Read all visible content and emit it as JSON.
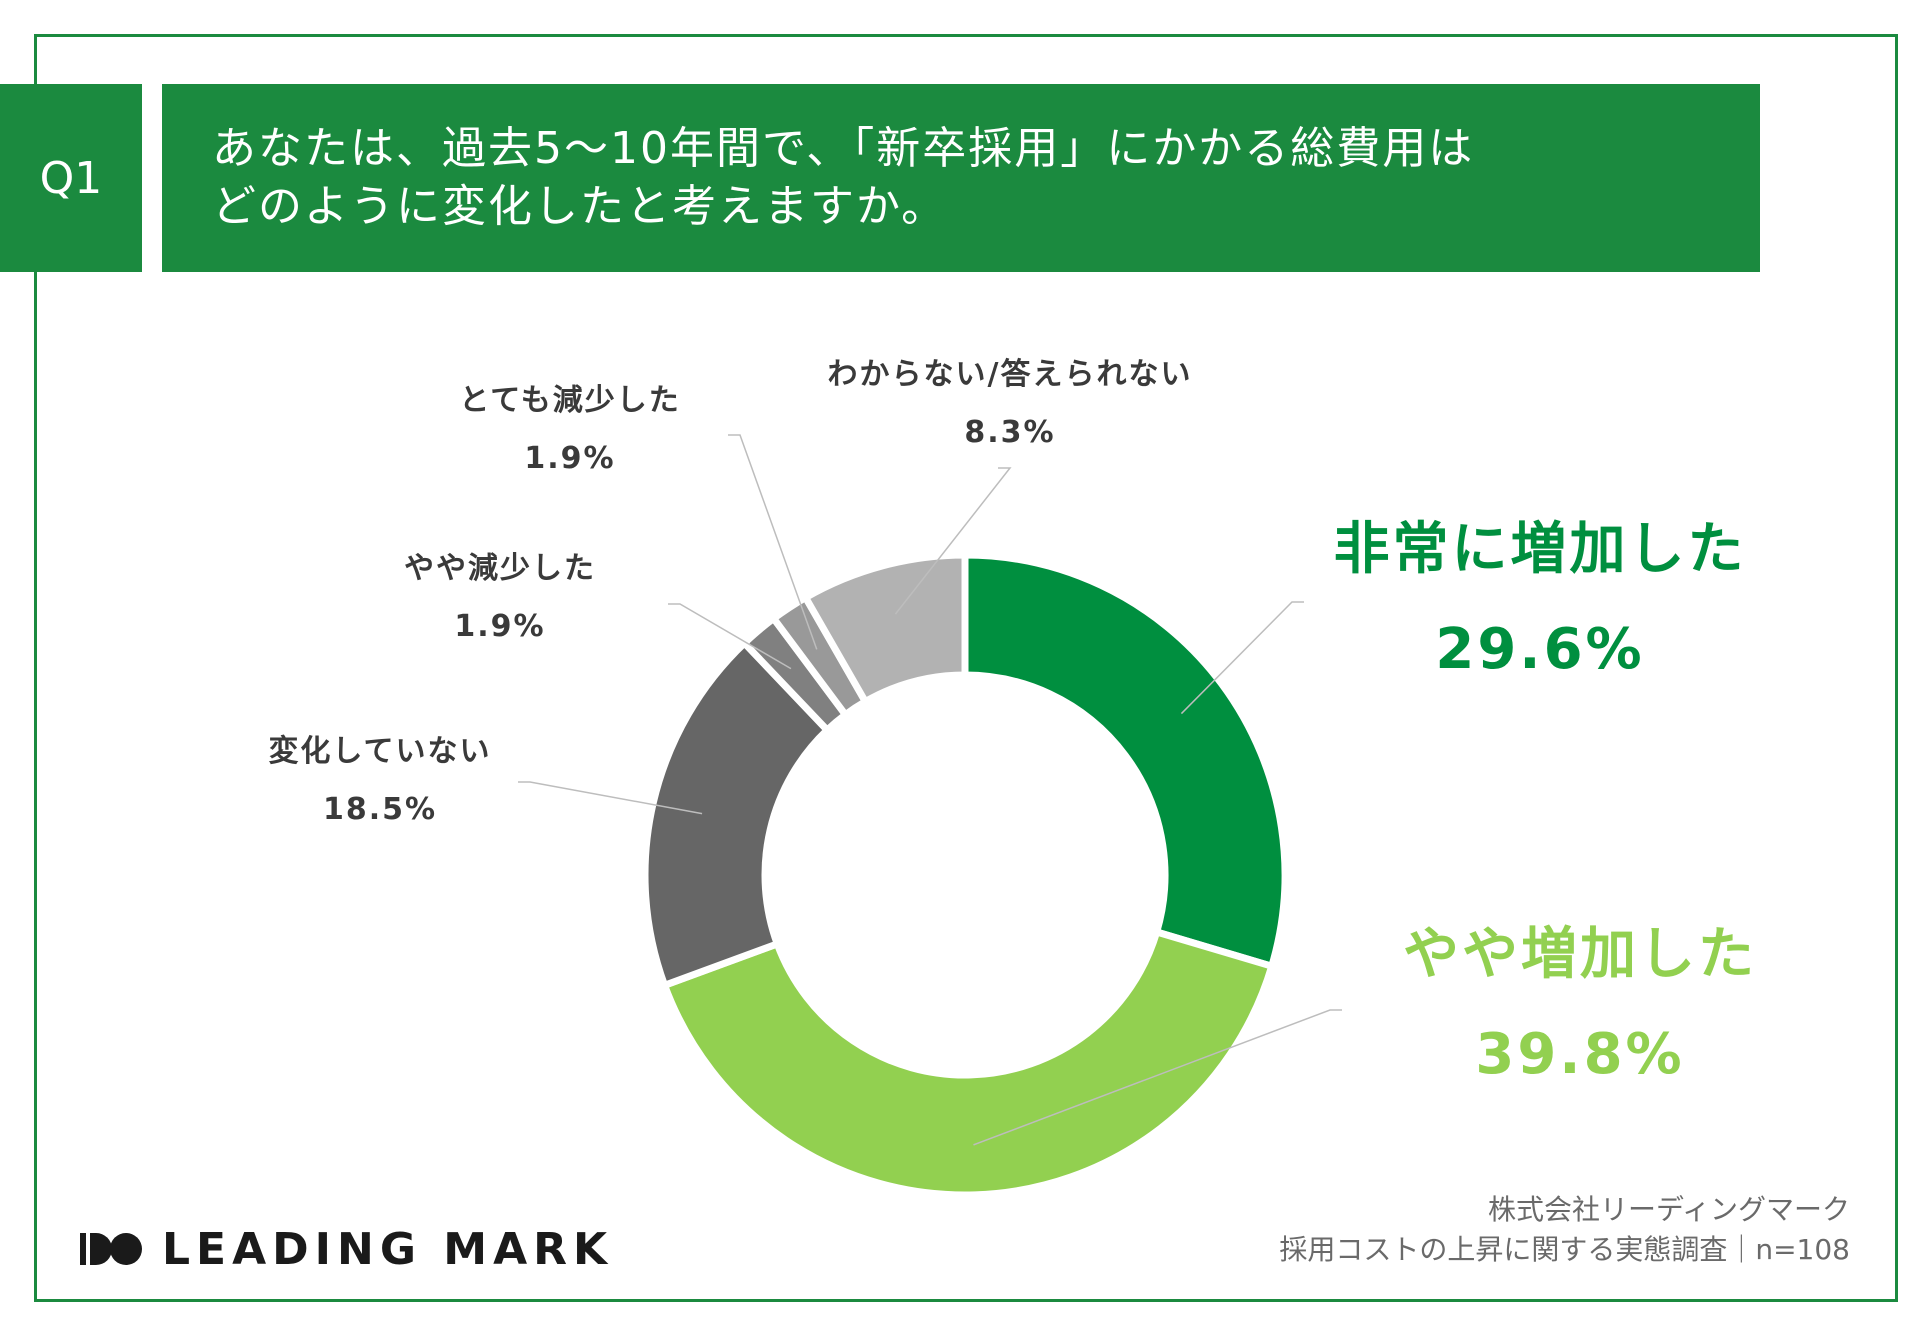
{
  "question": {
    "number": "Q1",
    "line1": "あなたは、過去5〜10年間で、「新卒採用」にかかる総費用は",
    "line2": "どのように変化したと考えますか。"
  },
  "chart_data": {
    "type": "pie",
    "style": "donut",
    "title": "",
    "categories": [
      "非常に増加した",
      "やや増加した",
      "変化していない",
      "やや減少した",
      "とても減少した",
      "わからない/答えられない"
    ],
    "values": [
      29.6,
      39.8,
      18.5,
      1.9,
      1.9,
      8.3
    ],
    "value_labels": [
      "29.6%",
      "39.8%",
      "18.5%",
      "1.9%",
      "1.9%",
      "8.3%"
    ],
    "colors": [
      "#008f3f",
      "#92d050",
      "#666666",
      "#808080",
      "#999999",
      "#b2b2b2"
    ]
  },
  "colors": {
    "accent": "#1b8a3f",
    "dark_green": "#008f3f",
    "light_green": "#92d050"
  },
  "logo": {
    "mark": "DO",
    "text": "LEADING MARK"
  },
  "source": {
    "line1": "株式会社リーディングマーク",
    "line2": "採用コストの上昇に関する実態調査｜n=108"
  }
}
